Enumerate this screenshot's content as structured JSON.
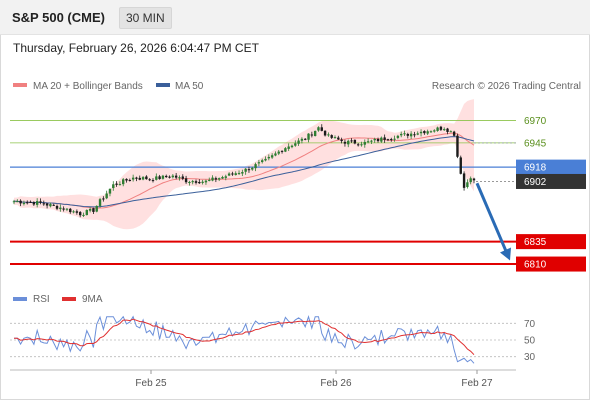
{
  "header": {
    "title": "S&P 500 (CME)",
    "timeframe": "30 MIN"
  },
  "datetime": "Thursday, February 26, 2026 6:04:47 PM CET",
  "legend": {
    "ma_bb": "MA 20 + Bollinger Bands",
    "ma50": "MA 50",
    "rsi": "RSI",
    "rsi_ma": "9MA"
  },
  "credit": "Research © 2026 Trading Central",
  "colors": {
    "up": "#2e7d32",
    "down": "#1b1b1b",
    "ma20": "#f08080",
    "ma50": "#3a5f9a",
    "bands": "#ffd6d6",
    "support": "#e00000",
    "pivot": "#4a7fd6",
    "resistance": "#8bc34a",
    "last": "#333333",
    "arrow": "#2a6bb5",
    "rsi": "#6b8fd9",
    "rsi_ma": "#e03030"
  },
  "chart_data": [
    {
      "type": "candlestick",
      "title": "S&P 500 (CME)",
      "timeframe": "30 MIN",
      "ylim": [
        6790,
        6995
      ],
      "x_ticks": [
        "Feb 25",
        "Feb 26",
        "Feb 27"
      ],
      "levels": [
        {
          "value": 6970,
          "label": "6970",
          "kind": "resistance"
        },
        {
          "value": 6945,
          "label": "6945",
          "kind": "resistance"
        },
        {
          "value": 6918,
          "label": "6918",
          "kind": "pivot"
        },
        {
          "value": 6835,
          "label": "6835",
          "kind": "support"
        },
        {
          "value": 6810,
          "label": "6810",
          "kind": "support"
        }
      ],
      "last_price": {
        "value": 6902,
        "label": "6902"
      },
      "forecast_arrow": {
        "from": 6900,
        "to": 6814
      },
      "indicators": [
        "MA 20",
        "Bollinger Bands",
        "MA 50"
      ]
    },
    {
      "type": "line",
      "title": "RSI",
      "series": [
        {
          "name": "RSI"
        },
        {
          "name": "9MA"
        }
      ],
      "ylim": [
        20,
        80
      ],
      "y_ticks": [
        "70",
        "50",
        "30"
      ]
    }
  ]
}
